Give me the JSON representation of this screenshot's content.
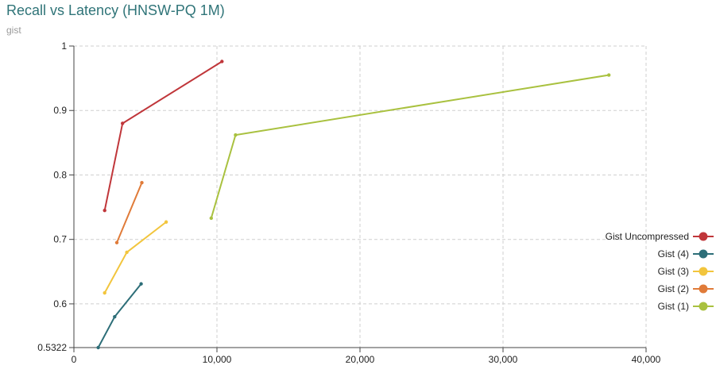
{
  "chart_data": {
    "type": "line",
    "title": "Recall vs Latency (HNSW-PQ 1M)",
    "subtitle": "gist",
    "xlabel": "",
    "ylabel": "",
    "xlim": [
      0,
      40000
    ],
    "ylim": [
      0.5322,
      1
    ],
    "grid": true,
    "legend_position": "right",
    "x_ticks": [
      {
        "value": 0,
        "label": "0"
      },
      {
        "value": 10000,
        "label": "10,000"
      },
      {
        "value": 20000,
        "label": "20,000"
      },
      {
        "value": 30000,
        "label": "30,000"
      },
      {
        "value": 40000,
        "label": "40,000"
      }
    ],
    "y_ticks": [
      {
        "value": 0.5322,
        "label": "0.5322"
      },
      {
        "value": 0.6,
        "label": "0.6"
      },
      {
        "value": 0.7,
        "label": "0.7"
      },
      {
        "value": 0.8,
        "label": "0.8"
      },
      {
        "value": 0.9,
        "label": "0.9"
      },
      {
        "value": 1.0,
        "label": "1"
      }
    ],
    "series": [
      {
        "name": "Gist Uncompressed",
        "color": "#c0363a",
        "points": [
          [
            2150,
            0.745
          ],
          [
            3400,
            0.88
          ],
          [
            10350,
            0.976
          ]
        ]
      },
      {
        "name": "Gist (4)",
        "color": "#2d6e78",
        "points": [
          [
            1700,
            0.5322
          ],
          [
            2850,
            0.58
          ],
          [
            4700,
            0.631
          ]
        ]
      },
      {
        "name": "Gist (3)",
        "color": "#f2c53d",
        "points": [
          [
            2150,
            0.617
          ],
          [
            3700,
            0.68
          ],
          [
            6450,
            0.727
          ]
        ]
      },
      {
        "name": "Gist (2)",
        "color": "#e07b39",
        "points": [
          [
            3000,
            0.695
          ],
          [
            4750,
            0.788
          ]
        ]
      },
      {
        "name": "Gist (1)",
        "color": "#a9c13f",
        "points": [
          [
            9600,
            0.733
          ],
          [
            11300,
            0.862
          ],
          [
            37400,
            0.955
          ]
        ]
      }
    ]
  }
}
